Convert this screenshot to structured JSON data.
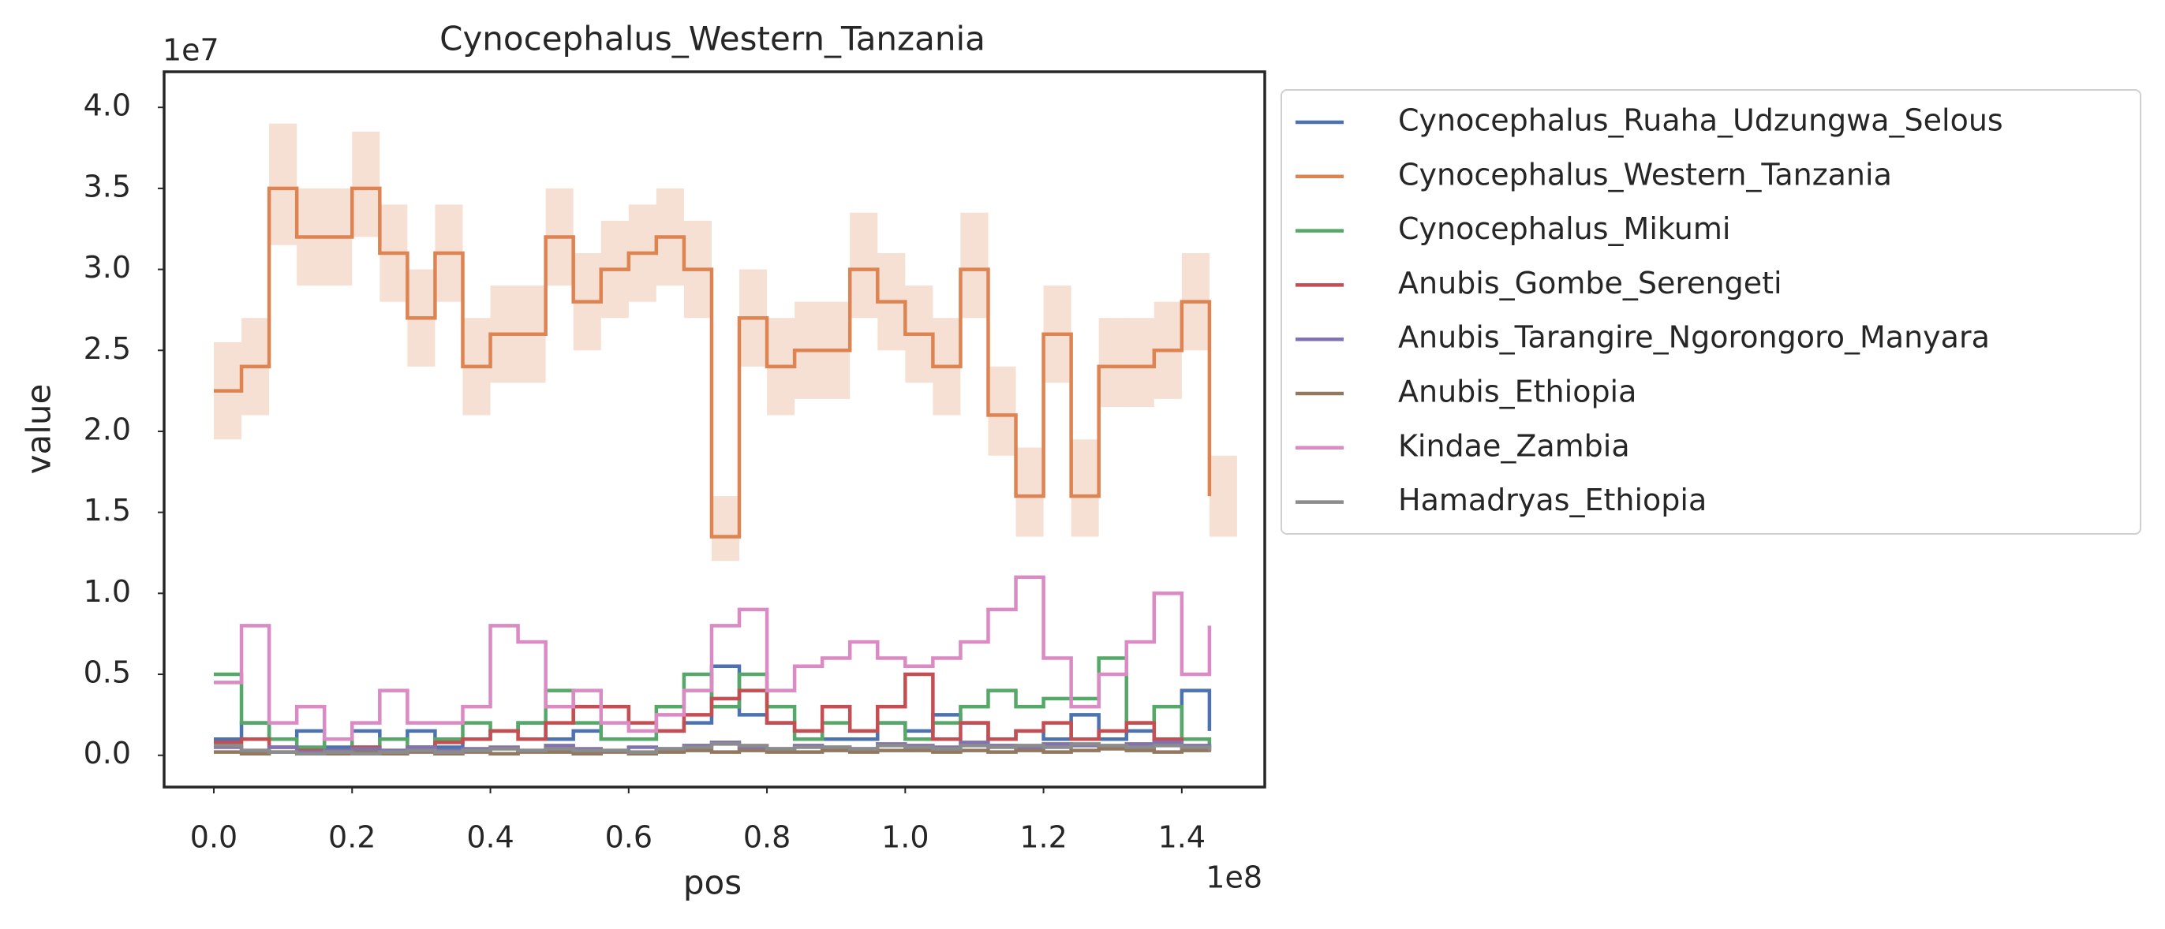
{
  "chart_data": {
    "type": "step",
    "title": "Cynocephalus_Western_Tanzania",
    "xlabel": "pos",
    "ylabel": "value",
    "x_offset_label": "1e8",
    "y_offset_label": "1e7",
    "xlim": [
      -7190000,
      152000000
    ],
    "ylim": [
      -1960000,
      42200000
    ],
    "xticks": [
      {
        "value": 0,
        "label": "0.0"
      },
      {
        "value": 20000000,
        "label": "0.2"
      },
      {
        "value": 40000000,
        "label": "0.4"
      },
      {
        "value": 60000000,
        "label": "0.6"
      },
      {
        "value": 80000000,
        "label": "0.8"
      },
      {
        "value": 100000000,
        "label": "1.0"
      },
      {
        "value": 120000000,
        "label": "1.2"
      },
      {
        "value": 140000000,
        "label": "1.4"
      }
    ],
    "yticks": [
      {
        "value": 0,
        "label": "0.0"
      },
      {
        "value": 5000000,
        "label": "0.5"
      },
      {
        "value": 10000000,
        "label": "1.0"
      },
      {
        "value": 15000000,
        "label": "1.5"
      },
      {
        "value": 20000000,
        "label": "2.0"
      },
      {
        "value": 25000000,
        "label": "2.5"
      },
      {
        "value": 30000000,
        "label": "3.0"
      },
      {
        "value": 35000000,
        "label": "3.5"
      },
      {
        "value": 40000000,
        "label": "4.0"
      }
    ],
    "legend": "outside-upper-right",
    "x": [
      0,
      4000000,
      8000000,
      12000000,
      16000000,
      20000000,
      24000000,
      28000000,
      32000000,
      36000000,
      40000000,
      44000000,
      48000000,
      52000000,
      56000000,
      60000000,
      64000000,
      68000000,
      72000000,
      76000000,
      80000000,
      84000000,
      88000000,
      92000000,
      96000000,
      100000000,
      104000000,
      108000000,
      112000000,
      116000000,
      120000000,
      124000000,
      128000000,
      132000000,
      136000000,
      140000000,
      144000000
    ],
    "series": [
      {
        "name": "Cynocephalus_Ruaha_Udzungwa_Selous",
        "color": "#4c72b0",
        "values": [
          1000000,
          2000000,
          1000000,
          1500000,
          500000,
          1500000,
          1000000,
          1500000,
          500000,
          1000000,
          1500000,
          2000000,
          1000000,
          1500000,
          1000000,
          1000000,
          1500000,
          2000000,
          5500000,
          2500000,
          2000000,
          1500000,
          1000000,
          1000000,
          2000000,
          1500000,
          2500000,
          2000000,
          1000000,
          1500000,
          1000000,
          2500000,
          1000000,
          1500000,
          1000000,
          4000000,
          1500000
        ]
      },
      {
        "name": "Cynocephalus_Western_Tanzania",
        "color": "#dd8452",
        "values": [
          22500000,
          24000000,
          35000000,
          32000000,
          32000000,
          35000000,
          31000000,
          27000000,
          31000000,
          24000000,
          26000000,
          26000000,
          32000000,
          28000000,
          30000000,
          31000000,
          32000000,
          30000000,
          13500000,
          27000000,
          24000000,
          25000000,
          25000000,
          30000000,
          28000000,
          26000000,
          24000000,
          30000000,
          21000000,
          16000000,
          26000000,
          16000000,
          24000000,
          24000000,
          25000000,
          28000000,
          16000000
        ],
        "lower": [
          19500000,
          21000000,
          31500000,
          29000000,
          29000000,
          32000000,
          28000000,
          24000000,
          28000000,
          21000000,
          23000000,
          23000000,
          29000000,
          25000000,
          27000000,
          28000000,
          29000000,
          27000000,
          12000000,
          24000000,
          21000000,
          22000000,
          22000000,
          27000000,
          25000000,
          23000000,
          21000000,
          27000000,
          18500000,
          13500000,
          23000000,
          13500000,
          21500000,
          21500000,
          22000000,
          25000000,
          13500000
        ],
        "upper": [
          25500000,
          27000000,
          39000000,
          35000000,
          35000000,
          38500000,
          34000000,
          30000000,
          34000000,
          27000000,
          29000000,
          29000000,
          35000000,
          31000000,
          33000000,
          34000000,
          35000000,
          33000000,
          16000000,
          30000000,
          27000000,
          28000000,
          28000000,
          33500000,
          31000000,
          29000000,
          27000000,
          33500000,
          24000000,
          19000000,
          29000000,
          19500000,
          27000000,
          27000000,
          28000000,
          31000000,
          18500000
        ]
      },
      {
        "name": "Cynocephalus_Mikumi",
        "color": "#55a868",
        "values": [
          5000000,
          2000000,
          1000000,
          500000,
          1000000,
          500000,
          1000000,
          500000,
          1000000,
          2000000,
          1500000,
          2000000,
          4000000,
          2000000,
          1000000,
          1000000,
          3000000,
          5000000,
          3000000,
          5000000,
          3000000,
          1000000,
          2000000,
          1500000,
          2000000,
          1000000,
          2000000,
          3000000,
          4000000,
          3000000,
          3500000,
          3500000,
          6000000,
          2000000,
          3000000,
          1000000,
          500000
        ]
      },
      {
        "name": "Anubis_Gombe_Serengeti",
        "color": "#c44e52",
        "values": [
          800000,
          1000000,
          500000,
          300000,
          300000,
          500000,
          300000,
          500000,
          800000,
          1000000,
          1500000,
          1000000,
          2000000,
          3000000,
          3000000,
          2000000,
          1500000,
          2500000,
          3500000,
          4000000,
          2000000,
          1500000,
          3000000,
          1500000,
          3000000,
          5000000,
          1000000,
          2000000,
          1000000,
          1500000,
          2000000,
          1000000,
          1500000,
          2000000,
          1000000,
          500000,
          300000
        ]
      },
      {
        "name": "Anubis_Tarangire_Ngorongoro_Manyara",
        "color": "#8172b3",
        "values": [
          500000,
          300000,
          500000,
          200000,
          300000,
          400000,
          300000,
          500000,
          300000,
          400000,
          500000,
          300000,
          600000,
          400000,
          300000,
          500000,
          400000,
          600000,
          800000,
          500000,
          400000,
          600000,
          500000,
          400000,
          700000,
          600000,
          500000,
          800000,
          600000,
          500000,
          700000,
          600000,
          500000,
          700000,
          800000,
          600000,
          400000
        ]
      },
      {
        "name": "Anubis_Ethiopia",
        "color": "#937860",
        "values": [
          200000,
          100000,
          200000,
          100000,
          100000,
          200000,
          100000,
          200000,
          100000,
          200000,
          100000,
          200000,
          200000,
          100000,
          200000,
          100000,
          200000,
          300000,
          200000,
          300000,
          200000,
          200000,
          300000,
          200000,
          300000,
          300000,
          200000,
          300000,
          200000,
          300000,
          200000,
          300000,
          400000,
          300000,
          200000,
          300000,
          200000
        ]
      },
      {
        "name": "Kindae_Zambia",
        "color": "#da8bc3",
        "values": [
          4500000,
          8000000,
          2000000,
          3000000,
          1000000,
          2000000,
          4000000,
          2000000,
          2000000,
          3000000,
          8000000,
          7000000,
          3000000,
          4000000,
          2000000,
          1500000,
          2500000,
          4000000,
          8000000,
          9000000,
          4000000,
          5500000,
          6000000,
          7000000,
          6000000,
          5500000,
          6000000,
          7000000,
          9000000,
          11000000,
          6000000,
          3000000,
          5000000,
          7000000,
          10000000,
          5000000,
          8000000
        ]
      },
      {
        "name": "Hamadryas_Ethiopia",
        "color": "#8c8c8c",
        "values": [
          600000,
          300000,
          200000,
          100000,
          200000,
          100000,
          200000,
          300000,
          200000,
          300000,
          400000,
          300000,
          400000,
          300000,
          300000,
          200000,
          400000,
          500000,
          700000,
          600000,
          400000,
          500000,
          500000,
          400000,
          600000,
          500000,
          400000,
          600000,
          500000,
          600000,
          500000,
          700000,
          600000,
          500000,
          600000,
          500000,
          300000
        ]
      }
    ]
  }
}
